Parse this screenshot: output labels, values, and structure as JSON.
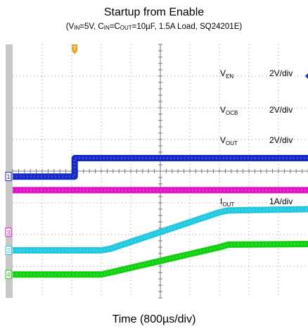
{
  "title": "Startup from Enable",
  "subtitle": {
    "p1": "(V",
    "s1": "IN",
    "p2": "=5V, C",
    "s2": "IN",
    "p3": "=C",
    "s3": "OUT",
    "p4": "=10µF, 1.5A Load, SQ24201E)"
  },
  "xlabel": "Time (800µs/div)",
  "chart_data": {
    "type": "line",
    "title": "Startup from Enable",
    "subtitle": "(VIN=5V, CIN=COUT=10µF, 1.5A Load, SQ24201E)",
    "xlabel": "Time (800µs/div)",
    "x_unit": "div",
    "y_unit": "div",
    "xlim": [
      0,
      10
    ],
    "ylim": [
      0,
      8
    ],
    "grid": true,
    "legend": "inline-right",
    "trigger_marker": {
      "label": "T",
      "x": 2.1
    },
    "series": [
      {
        "name": "VEN",
        "label_main": "V",
        "label_sub": "EN",
        "scale": "2V/div",
        "color": "#1428c8",
        "channel": "1",
        "ground_level": 3.83,
        "points": [
          [
            0,
            3.83
          ],
          [
            2.1,
            3.83
          ],
          [
            2.1,
            4.41
          ],
          [
            10,
            4.41
          ]
        ]
      },
      {
        "name": "VOCB",
        "label_main": "V",
        "label_sub": "OCB",
        "scale": "2V/div",
        "color": "#e010c8",
        "channel": "3",
        "ground_level": 2.07,
        "points": [
          [
            0,
            3.4
          ],
          [
            10,
            3.4
          ]
        ]
      },
      {
        "name": "VOUT",
        "label_main": "V",
        "label_sub": "OUT",
        "scale": "2V/div",
        "color": "#20c8e0",
        "channel": "2",
        "ground_level": 1.5,
        "points": [
          [
            0,
            1.5
          ],
          [
            3.0,
            1.5
          ],
          [
            3.3,
            1.55
          ],
          [
            7.0,
            2.7
          ],
          [
            7.3,
            2.76
          ],
          [
            10,
            2.8
          ]
        ]
      },
      {
        "name": "IOUT",
        "label_main": "I",
        "label_sub": "OUT",
        "scale": "1A/div",
        "color": "#10d010",
        "channel": "4",
        "ground_level": 0.74,
        "points": [
          [
            0,
            0.74
          ],
          [
            3.0,
            0.74
          ],
          [
            3.3,
            0.8
          ],
          [
            7.0,
            1.6
          ],
          [
            7.3,
            1.68
          ],
          [
            10,
            1.7
          ]
        ]
      }
    ]
  }
}
